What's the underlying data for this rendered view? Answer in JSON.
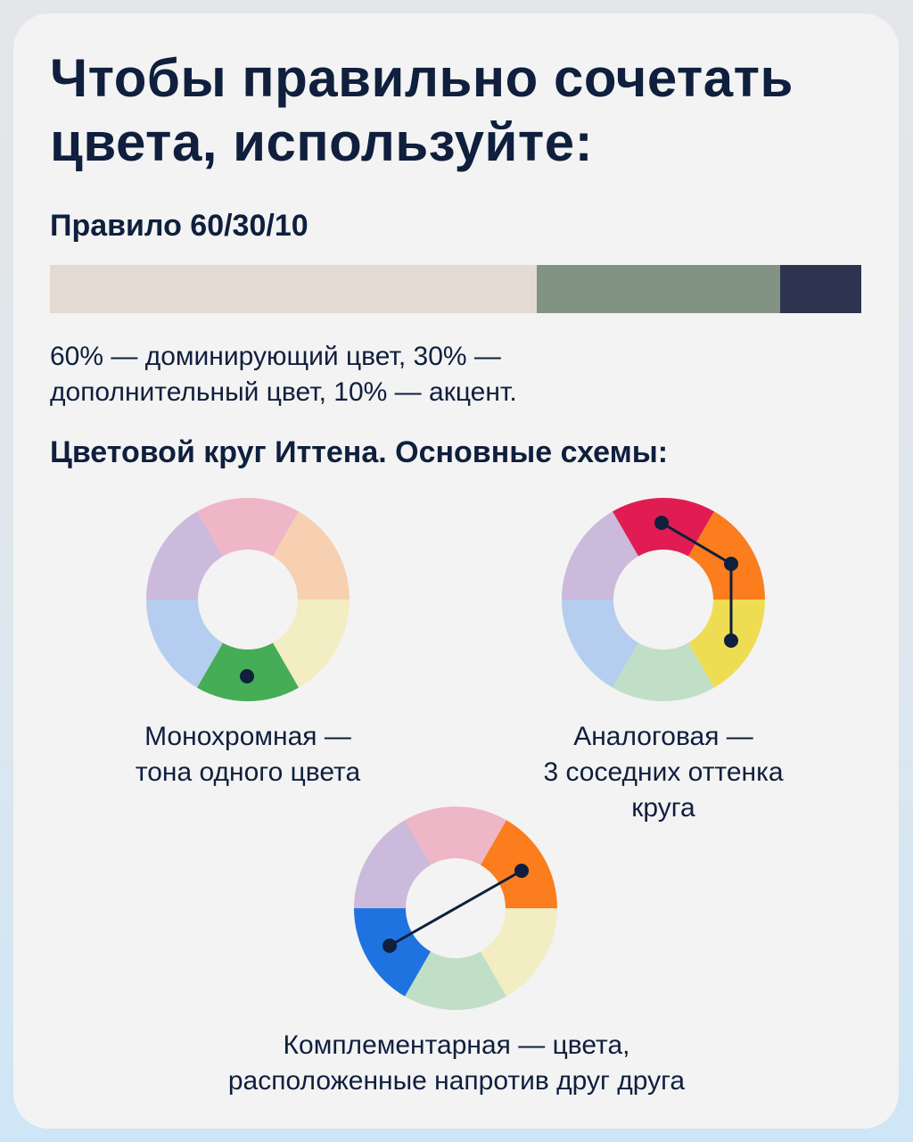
{
  "title": [
    "Чтобы правильно сочетать",
    "цвета, используйте:"
  ],
  "rule": {
    "heading": "Правило 60/30/10",
    "bar": [
      {
        "share": 60,
        "color": "#e3dbd3"
      },
      {
        "share": 30,
        "color": "#829384"
      },
      {
        "share": 10,
        "color": "#2e344f"
      }
    ],
    "description": [
      "60% — доминирующий цвет, 30% —",
      "дополнительный цвет, 10% — акцент."
    ]
  },
  "wheel_heading": "Цветовой круг Иттена. Основные схемы:",
  "accent_color": "#0f1f3d",
  "wheels": [
    {
      "name": "monochrome",
      "segments": [
        "#eeb6c6",
        "#f6d0b1",
        "#f3edc4",
        "#45ad55",
        "#b5cdee",
        "#cbbadb"
      ],
      "dots": [
        3
      ],
      "caption": [
        "Монохромная —",
        "тона одного цвета"
      ]
    },
    {
      "name": "analogous",
      "segments": [
        "#e11c52",
        "#fb7d1e",
        "#eedd52",
        "#c1dfc7",
        "#b5cdee",
        "#cbbadb"
      ],
      "dots": [
        0,
        1,
        2
      ],
      "caption": [
        "Аналоговая —",
        "3 соседних оттенка",
        "круга"
      ]
    },
    {
      "name": "complementary",
      "segments": [
        "#eeb6c6",
        "#fb7d1e",
        "#f3edc4",
        "#c1dfc7",
        "#1f73e0",
        "#cbbadb"
      ],
      "dots": [
        1,
        4
      ],
      "caption": [
        "Комплементарная — цвета,",
        "расположенные напротив друг друга"
      ]
    }
  ]
}
